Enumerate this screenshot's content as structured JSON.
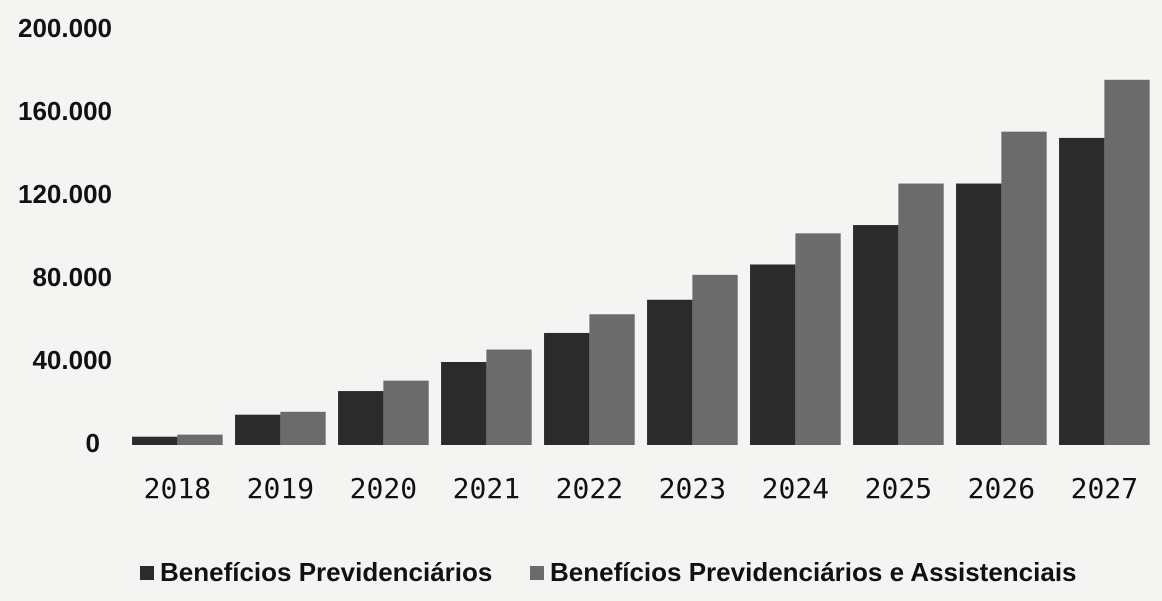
{
  "chart_data": {
    "type": "bar",
    "categories": [
      "2018",
      "2019",
      "2020",
      "2021",
      "2022",
      "2023",
      "2024",
      "2025",
      "2026",
      "2027"
    ],
    "series": [
      {
        "name": "Benefícios Previdenciários",
        "color": "#2b2b2b",
        "values": [
          4000,
          14600,
          26000,
          40000,
          54000,
          70000,
          87000,
          106000,
          126000,
          148000
        ]
      },
      {
        "name": "Benefícios Previdenciários e Assistenciais",
        "color": "#6b6b6b",
        "values": [
          5000,
          16000,
          31000,
          46000,
          63000,
          82000,
          102000,
          126000,
          151000,
          176000
        ]
      }
    ],
    "ylim": [
      0,
      200000
    ],
    "yticks": [
      0,
      {
        "value": 40000,
        "label": "40.000"
      },
      {
        "value": 80000,
        "label": "80.000"
      },
      {
        "value": 120000,
        "label": "120.000"
      },
      {
        "value": 160000,
        "label": "160.000"
      },
      {
        "value": 200000,
        "label": "200.000"
      }
    ],
    "grid": false,
    "legend": "bottom"
  }
}
